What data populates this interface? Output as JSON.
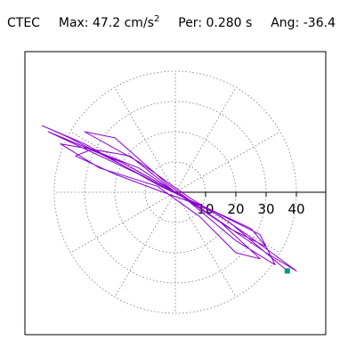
{
  "header": {
    "station": "CTEC",
    "max_label": "Max:",
    "max_value": "47.2",
    "max_unit": "cm/s",
    "max_unit_exp": "2",
    "per_label": "Per:",
    "per_value": "0.280 s",
    "ang_label": "Ang:",
    "ang_value": "-36.4"
  },
  "chart_data": {
    "type": "polar-orbit",
    "title": "CTEC  Max: 47.2 cm/s2  Per: 0.280 s  Ang: -36.4",
    "radial_ticks": [
      "10",
      "20",
      "30",
      "40"
    ],
    "rlim": [
      0,
      50
    ],
    "grid": true,
    "grid_style": "dotted",
    "series": [
      {
        "color": "#8800cc",
        "points": [
          [
            0,
            0
          ],
          [
            -12,
            8
          ],
          [
            -30,
            15
          ],
          [
            -42,
            20
          ],
          [
            -10,
            5
          ],
          [
            15,
            -8
          ],
          [
            25,
            -15
          ],
          [
            40,
            -26
          ],
          [
            30,
            -20
          ],
          [
            5,
            -3
          ],
          [
            -8,
            4
          ],
          [
            -35,
            18
          ],
          [
            -44,
            22
          ],
          [
            -30,
            16
          ],
          [
            -5,
            2
          ],
          [
            12,
            -6
          ],
          [
            28,
            -14
          ],
          [
            33,
            -24
          ],
          [
            20,
            -16
          ],
          [
            2,
            -1
          ],
          [
            -18,
            10
          ],
          [
            -28,
            14
          ],
          [
            -33,
            12
          ],
          [
            -20,
            6
          ],
          [
            -4,
            0
          ],
          [
            10,
            -5
          ],
          [
            25,
            -12
          ],
          [
            30,
            -18
          ],
          [
            18,
            -12
          ],
          [
            0,
            0
          ],
          [
            -15,
            12
          ],
          [
            -38,
            16
          ],
          [
            -25,
            8
          ],
          [
            -6,
            2
          ],
          [
            8,
            -8
          ],
          [
            20,
            -20
          ],
          [
            28,
            -22
          ],
          [
            15,
            -10
          ],
          [
            -3,
            3
          ],
          [
            -20,
            18
          ],
          [
            -30,
            20
          ],
          [
            -12,
            10
          ],
          [
            5,
            -2
          ],
          [
            18,
            -10
          ],
          [
            37,
            -26
          ]
        ]
      }
    ],
    "end_marker": {
      "x": 37,
      "y": -26,
      "color": "#009980",
      "shape": "square"
    }
  }
}
